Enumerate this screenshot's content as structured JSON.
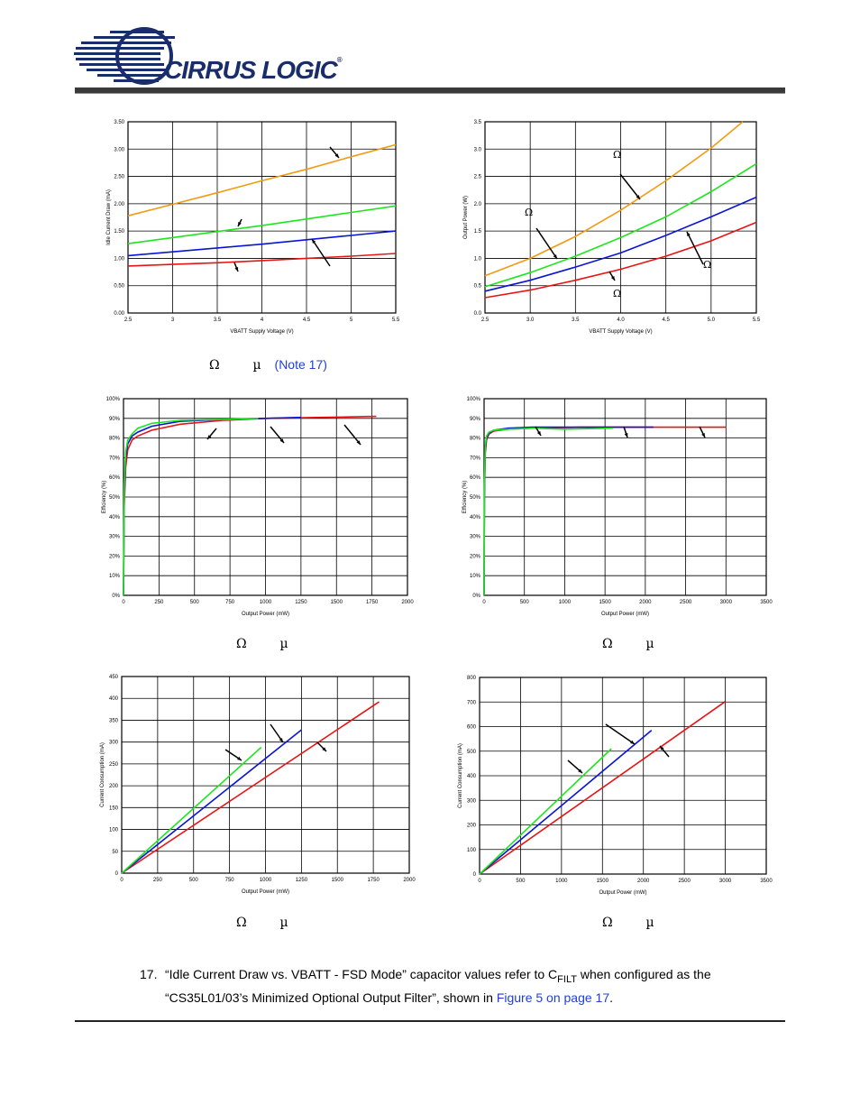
{
  "header": {
    "brand": "CIRRUS LOGIC",
    "reg": "®"
  },
  "captions": {
    "omega": "Ω",
    "mu": "µ",
    "note": "(Note 17)"
  },
  "footnote": {
    "number": "17.",
    "text_1": "“Idle Current Draw vs. VBATT - FSD Mode” capacitor values refer to C",
    "sub": "FILT",
    "text_2": " when configured as the",
    "text_3": "“CS35L01/03’s Minimized Optional Output Filter”, shown in ",
    "link": "Figure 5 on page 17",
    "text_4": "."
  },
  "colors": {
    "orange": "#f39a12",
    "green": "#1ee61e",
    "blue": "#0a14d6",
    "red": "#e81414"
  },
  "chart_data": [
    {
      "id": "idle",
      "type": "line",
      "xlabel": "VBATT Supply Voltage  (V)",
      "ylabel": "Idle Current Draw (mA)",
      "xlim": [
        2.5,
        5.5
      ],
      "ylim": [
        0,
        3.5
      ],
      "xticks": [
        2.5,
        3,
        3.5,
        4,
        4.5,
        5,
        5.5
      ],
      "xtick_labels": [
        "2.5",
        "3",
        "3.5",
        "4",
        "4.5",
        "5",
        "5.5"
      ],
      "yticks": [
        0,
        0.5,
        1,
        1.5,
        2,
        2.5,
        3,
        3.5
      ],
      "ytick_labels": [
        "0.00",
        "0.50",
        "1.00",
        "1.50",
        "2.00",
        "2.50",
        "3.00",
        "3.50"
      ],
      "grid": true,
      "series": [
        {
          "color": "orange",
          "x": [
            2.5,
            3.0,
            3.5,
            4.0,
            4.5,
            5.0,
            5.5
          ],
          "y": [
            1.78,
            1.99,
            2.2,
            2.42,
            2.63,
            2.86,
            3.08
          ]
        },
        {
          "color": "green",
          "x": [
            2.5,
            3.0,
            3.5,
            4.0,
            4.5,
            5.0,
            5.5
          ],
          "y": [
            1.27,
            1.38,
            1.49,
            1.6,
            1.72,
            1.84,
            1.96
          ]
        },
        {
          "color": "blue",
          "x": [
            2.5,
            3.0,
            3.5,
            4.0,
            4.5,
            5.0,
            5.5
          ],
          "y": [
            1.05,
            1.12,
            1.19,
            1.26,
            1.34,
            1.42,
            1.5
          ]
        },
        {
          "color": "red",
          "x": [
            2.5,
            3.0,
            3.5,
            4.0,
            4.5,
            5.0,
            5.5
          ],
          "y": [
            0.86,
            0.89,
            0.92,
            0.96,
            1.0,
            1.04,
            1.09
          ]
        }
      ]
    },
    {
      "id": "outpow",
      "type": "line",
      "xlabel": "VBATT Supply Voltage (V)",
      "ylabel": "Output Power (W)",
      "xlim": [
        2.5,
        5.5
      ],
      "ylim": [
        0,
        3.5
      ],
      "xticks": [
        2.5,
        3,
        3.5,
        4,
        4.5,
        5,
        5.5
      ],
      "xtick_labels": [
        "2.5",
        "3.0",
        "3.5",
        "4.0",
        "4.5",
        "5.0",
        "5.5"
      ],
      "yticks": [
        0,
        0.5,
        1,
        1.5,
        2,
        2.5,
        3,
        3.5
      ],
      "ytick_labels": [
        "0.0",
        "0.5",
        "1.0",
        "1.5",
        "2.0",
        "2.5",
        "3.0",
        "3.5"
      ],
      "grid": true,
      "series": [
        {
          "color": "orange",
          "x": [
            2.5,
            3.0,
            3.5,
            4.0,
            4.5,
            5.0,
            5.35
          ],
          "y": [
            0.68,
            1.0,
            1.4,
            1.88,
            2.42,
            3.02,
            3.5
          ]
        },
        {
          "color": "green",
          "x": [
            2.5,
            3.0,
            3.5,
            4.0,
            4.5,
            5.0,
            5.5
          ],
          "y": [
            0.48,
            0.74,
            1.04,
            1.38,
            1.76,
            2.22,
            2.73
          ]
        },
        {
          "color": "blue",
          "x": [
            2.5,
            3.0,
            3.5,
            4.0,
            4.5,
            5.0,
            5.5
          ],
          "y": [
            0.4,
            0.6,
            0.84,
            1.1,
            1.42,
            1.76,
            2.12
          ]
        },
        {
          "color": "red",
          "x": [
            2.5,
            3.0,
            3.5,
            4.0,
            4.5,
            5.0,
            5.5
          ],
          "y": [
            0.28,
            0.42,
            0.6,
            0.8,
            1.04,
            1.32,
            1.66
          ]
        }
      ]
    },
    {
      "id": "eff1",
      "type": "line",
      "xlabel": "Output Power (mW)",
      "ylabel": "Efficiency (%)",
      "xlim": [
        0,
        2000
      ],
      "ylim": [
        0,
        100
      ],
      "xticks": [
        0,
        250,
        500,
        750,
        1000,
        1250,
        1500,
        1750,
        2000
      ],
      "xtick_labels": [
        "0",
        "250",
        "500",
        "750",
        "1000",
        "1250",
        "1500",
        "1750",
        "2000"
      ],
      "yticks": [
        0,
        10,
        20,
        30,
        40,
        50,
        60,
        70,
        80,
        90,
        100
      ],
      "ytick_labels": [
        "0%",
        "10%",
        "20%",
        "30%",
        "40%",
        "50%",
        "60%",
        "70%",
        "80%",
        "90%",
        "100%"
      ],
      "grid": true,
      "series": [
        {
          "color": "red",
          "x": [
            0,
            5,
            15,
            30,
            60,
            100,
            200,
            400,
            700,
            1000,
            1400,
            1780
          ],
          "y": [
            0,
            45,
            65,
            74,
            79,
            81,
            84,
            87,
            89,
            90,
            90.5,
            91
          ]
        },
        {
          "color": "blue",
          "x": [
            0,
            5,
            15,
            30,
            60,
            100,
            200,
            400,
            700,
            1000,
            1250
          ],
          "y": [
            0,
            50,
            70,
            77,
            81,
            83,
            86,
            88.5,
            89.5,
            90,
            90.5
          ]
        },
        {
          "color": "green",
          "x": [
            0,
            5,
            15,
            30,
            60,
            100,
            200,
            400,
            700,
            950
          ],
          "y": [
            0,
            55,
            73,
            79,
            82,
            85,
            87.5,
            89,
            89.5,
            90
          ]
        }
      ]
    },
    {
      "id": "eff2",
      "type": "line",
      "xlabel": "Output Power (mW)",
      "ylabel": "Efficiency (%)",
      "xlim": [
        0,
        3500
      ],
      "ylim": [
        0,
        100
      ],
      "xticks": [
        0,
        500,
        1000,
        1500,
        2000,
        2500,
        3000,
        3500
      ],
      "xtick_labels": [
        "0",
        "500",
        "1000",
        "1500",
        "2000",
        "2500",
        "3000",
        "3500"
      ],
      "yticks": [
        0,
        10,
        20,
        30,
        40,
        50,
        60,
        70,
        80,
        90,
        100
      ],
      "ytick_labels": [
        "0%",
        "10%",
        "20%",
        "30%",
        "40%",
        "50%",
        "60%",
        "70%",
        "80%",
        "90%",
        "100%"
      ],
      "grid": true,
      "series": [
        {
          "color": "red",
          "x": [
            0,
            5,
            15,
            30,
            60,
            120,
            300,
            600,
            1200,
            2000,
            3000
          ],
          "y": [
            0,
            50,
            72,
            79,
            82,
            83.5,
            84.5,
            85,
            85.5,
            85.5,
            85.5
          ]
        },
        {
          "color": "blue",
          "x": [
            0,
            5,
            15,
            30,
            60,
            120,
            300,
            600,
            1200,
            2100
          ],
          "y": [
            0,
            52,
            74,
            80,
            82.5,
            84,
            85,
            85.5,
            85.5,
            85.5
          ]
        },
        {
          "color": "green",
          "x": [
            0,
            5,
            15,
            30,
            60,
            120,
            300,
            600,
            1000,
            1600
          ],
          "y": [
            0,
            55,
            76,
            81,
            83,
            84,
            84.5,
            85,
            84.5,
            85
          ]
        }
      ]
    },
    {
      "id": "cur1",
      "type": "line",
      "xlabel": "Output Power (mW)",
      "ylabel": "Current Consumption (mA)",
      "xlim": [
        0,
        2000
      ],
      "ylim": [
        0,
        450
      ],
      "xticks": [
        0,
        250,
        500,
        750,
        1000,
        1250,
        1500,
        1750,
        2000
      ],
      "xtick_labels": [
        "0",
        "250",
        "500",
        "750",
        "1000",
        "1250",
        "1500",
        "1750",
        "2000"
      ],
      "yticks": [
        0,
        50,
        100,
        150,
        200,
        250,
        300,
        350,
        400,
        450
      ],
      "ytick_labels": [
        "0",
        "50",
        "100",
        "150",
        "200",
        "250",
        "300",
        "350",
        "400",
        "450"
      ],
      "grid": true,
      "series": [
        {
          "color": "red",
          "x": [
            0,
            1790
          ],
          "y": [
            0,
            392
          ]
        },
        {
          "color": "blue",
          "x": [
            0,
            1250
          ],
          "y": [
            0,
            328
          ]
        },
        {
          "color": "green",
          "x": [
            0,
            970
          ],
          "y": [
            0,
            288
          ]
        }
      ]
    },
    {
      "id": "cur2",
      "type": "line",
      "xlabel": "Output Power (mW)",
      "ylabel": "Current Consumption (mA)",
      "xlim": [
        0,
        3500
      ],
      "ylim": [
        0,
        800
      ],
      "xticks": [
        0,
        500,
        1000,
        1500,
        2000,
        2500,
        3000,
        3500
      ],
      "xtick_labels": [
        "0",
        "500",
        "1000",
        "1500",
        "2000",
        "2500",
        "3000",
        "3500"
      ],
      "yticks": [
        0,
        100,
        200,
        300,
        400,
        500,
        600,
        700,
        800
      ],
      "ytick_labels": [
        "0",
        "100",
        "200",
        "300",
        "400",
        "500",
        "600",
        "700",
        "800"
      ],
      "grid": true,
      "series": [
        {
          "color": "red",
          "x": [
            0,
            3000
          ],
          "y": [
            0,
            702
          ]
        },
        {
          "color": "blue",
          "x": [
            0,
            2100
          ],
          "y": [
            0,
            585
          ]
        },
        {
          "color": "green",
          "x": [
            0,
            1610
          ],
          "y": [
            0,
            510
          ]
        }
      ]
    }
  ]
}
